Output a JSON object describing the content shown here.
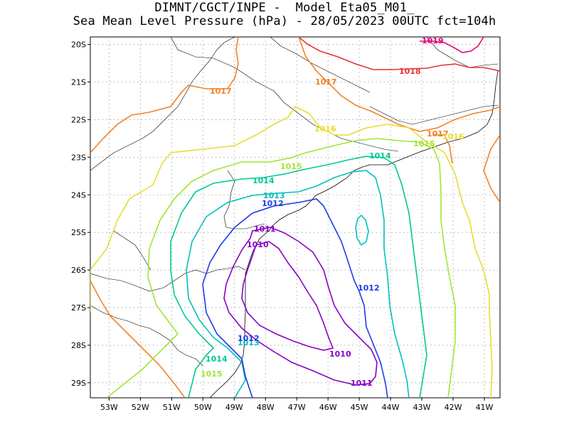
{
  "title": {
    "line1": "DIMNT/CGCT/INPE -  Model Eta05_M01_",
    "line2": "Sea Mean Level Pressure (hPa) - 28/05/2023 00UTC fct=104h"
  },
  "axes": {
    "lon_ticks": [
      "53W",
      "52W",
      "51W",
      "50W",
      "49W",
      "48W",
      "47W",
      "46W",
      "45W",
      "44W",
      "43W",
      "42W",
      "41W"
    ],
    "lat_ticks": [
      "20S",
      "21S",
      "22S",
      "23S",
      "24S",
      "25S",
      "26S",
      "27S",
      "28S",
      "29S"
    ],
    "lon_range": [
      -53.6,
      -40.5
    ],
    "lat_range": [
      -29.4,
      -19.8
    ],
    "grid": true
  },
  "contours": [
    {
      "level": "1010",
      "color": "#8a00c8",
      "labels": [
        "1010",
        "1010"
      ]
    },
    {
      "level": "1011",
      "color": "#8a00c8",
      "labels": [
        "1011",
        "1011"
      ]
    },
    {
      "level": "1012",
      "color": "#1e3ce6",
      "labels": [
        "1012",
        "1012",
        "1012"
      ]
    },
    {
      "level": "1013",
      "color": "#00c0c0",
      "labels": [
        "1013",
        "1013"
      ]
    },
    {
      "level": "1014",
      "color": "#00c896",
      "labels": [
        "1014",
        "1014",
        "1014"
      ]
    },
    {
      "level": "1015",
      "color": "#a0e632",
      "labels": [
        "1015",
        "1015",
        "1015"
      ]
    },
    {
      "level": "1016",
      "color": "#e6dc32",
      "labels": [
        "1016",
        "1016"
      ]
    },
    {
      "level": "1017",
      "color": "#f08228",
      "labels": [
        "1017",
        "1017",
        "1017"
      ]
    },
    {
      "level": "1018",
      "color": "#e63232",
      "labels": [
        "1018"
      ]
    },
    {
      "level": "1019",
      "color": "#e6007d",
      "labels": [
        "1019"
      ]
    }
  ]
}
